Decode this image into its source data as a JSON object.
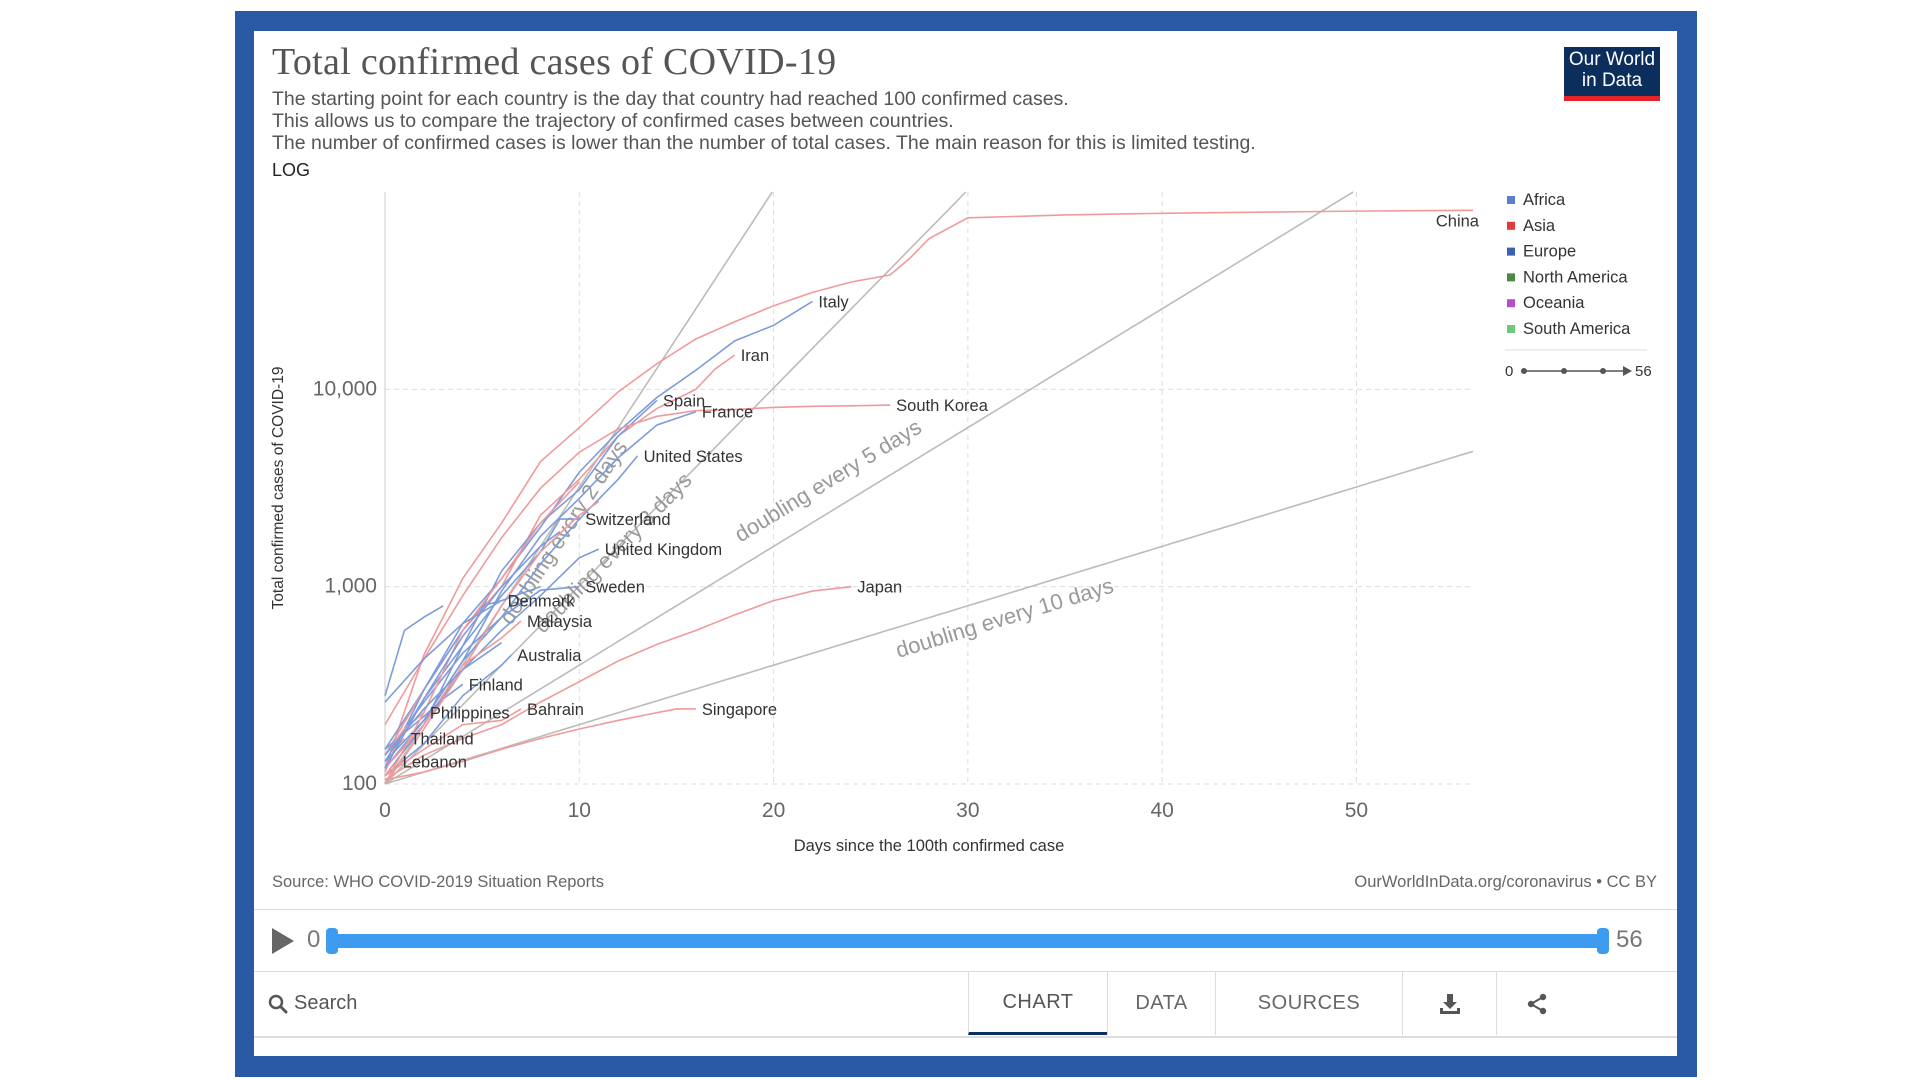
{
  "header": {
    "title": "Total confirmed cases of COVID-19",
    "subtitle_lines": [
      "The starting point for each country is the day that country had reached 100 confirmed cases.",
      "This allows us to compare the trajectory of confirmed cases between countries.",
      "The number of confirmed cases is lower than the number of total cases. The main reason for this is limited testing."
    ],
    "scale_label": "LOG",
    "logo_line1": "Our World",
    "logo_line2": "in Data"
  },
  "footer": {
    "source": "Source: WHO COVID-2019 Situation Reports",
    "url": "OurWorldInData.org/coronavirus • CC BY"
  },
  "timeline": {
    "start": "0",
    "end": "56"
  },
  "toolbar": {
    "search_label": "Search",
    "tabs": [
      "CHART",
      "DATA",
      "SOURCES"
    ],
    "active_tab": "CHART"
  },
  "chart_data": {
    "type": "line",
    "ylabel": "Total confirmed cases of COVID-19",
    "xlabel": "Days since the 100th confirmed case",
    "log_y": true,
    "xlim": [
      0,
      56
    ],
    "ylim": [
      100,
      80000
    ],
    "x_ticks": [
      0,
      10,
      20,
      30,
      40,
      50
    ],
    "y_ticks": [
      100,
      1000,
      10000
    ],
    "y_tick_labels": [
      "100",
      "1,000",
      "10,000"
    ],
    "grid": true,
    "legend_position": "right",
    "legend": [
      {
        "name": "Africa",
        "color": "#5d7fd0"
      },
      {
        "name": "Asia",
        "color": "#e03a3a"
      },
      {
        "name": "Europe",
        "color": "#3b62b0"
      },
      {
        "name": "North America",
        "color": "#4a8a44"
      },
      {
        "name": "Oceania",
        "color": "#b44fc2"
      },
      {
        "name": "South America",
        "color": "#6cc97a"
      }
    ],
    "legend_timeline": {
      "start": "0",
      "end": "56"
    },
    "doubling_lines": [
      {
        "label": "doubling every 2 days",
        "days": 2
      },
      {
        "label": "doubling every 3 days",
        "days": 3
      },
      {
        "label": "doubling every 5 days",
        "days": 5
      },
      {
        "label": "doubling every 10 days",
        "days": 10
      }
    ],
    "series": [
      {
        "name": "China",
        "color": "#f09a9a",
        "x": [
          0,
          2,
          4,
          6,
          8,
          10,
          12,
          14,
          16,
          18,
          20,
          22,
          24,
          26,
          27,
          28,
          30,
          35,
          40,
          45,
          50,
          56
        ],
        "y": [
          120,
          450,
          1100,
          2100,
          4300,
          6400,
          9700,
          13500,
          18000,
          22000,
          26500,
          31000,
          35000,
          38000,
          46000,
          58000,
          74000,
          76500,
          78000,
          79000,
          80000,
          80800
        ]
      },
      {
        "name": "Italy",
        "color": "#7d9cdb",
        "x": [
          0,
          2,
          4,
          6,
          8,
          10,
          12,
          14,
          16,
          18,
          20,
          22
        ],
        "y": [
          150,
          300,
          650,
          1100,
          2000,
          3800,
          6100,
          9100,
          12500,
          17600,
          21100,
          27900
        ]
      },
      {
        "name": "Iran",
        "color": "#f09a9a",
        "x": [
          0,
          2,
          4,
          6,
          8,
          10,
          12,
          14,
          16,
          17,
          18
        ],
        "y": [
          140,
          300,
          600,
          1000,
          2300,
          3500,
          5800,
          8000,
          10000,
          12700,
          14900
        ]
      },
      {
        "name": "Spain",
        "color": "#7d9cdb",
        "x": [
          0,
          2,
          4,
          6,
          8,
          10,
          12,
          14
        ],
        "y": [
          110,
          200,
          500,
          1200,
          2100,
          3100,
          5800,
          8800
        ]
      },
      {
        "name": "France",
        "color": "#7d9cdb",
        "x": [
          0,
          2,
          4,
          6,
          8,
          10,
          12,
          14,
          16
        ],
        "y": [
          130,
          210,
          420,
          950,
          1800,
          2800,
          4500,
          6600,
          7700
        ]
      },
      {
        "name": "South Korea",
        "color": "#f09a9a",
        "x": [
          0,
          2,
          4,
          6,
          8,
          10,
          12,
          14,
          16,
          18,
          20,
          22,
          24,
          26
        ],
        "y": [
          200,
          430,
          900,
          1770,
          3150,
          4800,
          6300,
          7300,
          7800,
          7900,
          8100,
          8200,
          8250,
          8320
        ]
      },
      {
        "name": "United States",
        "color": "#7d9cdb",
        "x": [
          0,
          2,
          4,
          6,
          8,
          10,
          12,
          13
        ],
        "y": [
          120,
          210,
          420,
          700,
          1300,
          2200,
          3500,
          4600
        ]
      },
      {
        "name": "Switzerland",
        "color": "#7d9cdb",
        "x": [
          0,
          2,
          4,
          6,
          8,
          9,
          10
        ],
        "y": [
          130,
          270,
          500,
          900,
          1500,
          2200,
          2200
        ]
      },
      {
        "name": "United Kingdom",
        "color": "#7d9cdb",
        "x": [
          0,
          2,
          4,
          6,
          8,
          10,
          11
        ],
        "y": [
          110,
          200,
          380,
          600,
          900,
          1400,
          1550
        ]
      },
      {
        "name": "Denmark",
        "color": "#7d9cdb",
        "x": [
          0,
          2,
          4,
          5,
          6
        ],
        "y": [
          120,
          300,
          600,
          800,
          850
        ]
      },
      {
        "name": "Sweden",
        "color": "#7d9cdb",
        "x": [
          0,
          2,
          4,
          6,
          8,
          10
        ],
        "y": [
          140,
          260,
          460,
          700,
          960,
          1000
        ]
      },
      {
        "name": "Malaysia",
        "color": "#f09a9a",
        "x": [
          0,
          2,
          4,
          6,
          7
        ],
        "y": [
          120,
          200,
          400,
          550,
          670
        ]
      },
      {
        "name": "Australia",
        "color": "#7d9cdb",
        "x": [
          0,
          2,
          4,
          6,
          6.5
        ],
        "y": [
          110,
          160,
          280,
          400,
          450
        ]
      },
      {
        "name": "Finland",
        "color": "#7d9cdb",
        "x": [
          0,
          2,
          3,
          4
        ],
        "y": [
          150,
          220,
          270,
          320
        ]
      },
      {
        "name": "Bahrain",
        "color": "#f09a9a",
        "x": [
          0,
          2,
          4,
          6,
          7
        ],
        "y": [
          110,
          150,
          200,
          210,
          240
        ]
      },
      {
        "name": "Philippines",
        "color": "#f09a9a",
        "x": [
          0,
          1,
          2
        ],
        "y": [
          140,
          190,
          230
        ]
      },
      {
        "name": "Thailand",
        "color": "#f09a9a",
        "x": [
          0,
          0.5,
          1
        ],
        "y": [
          115,
          150,
          170
        ]
      },
      {
        "name": "Lebanon",
        "color": "#f09a9a",
        "x": [
          0,
          0.3,
          0.6
        ],
        "y": [
          110,
          120,
          130
        ]
      },
      {
        "name": "Japan",
        "color": "#f09a9a",
        "x": [
          0,
          2,
          4,
          6,
          8,
          10,
          12,
          14,
          16,
          18,
          20,
          22,
          24
        ],
        "y": [
          105,
          140,
          170,
          200,
          260,
          330,
          420,
          510,
          600,
          720,
          850,
          950,
          1000
        ]
      },
      {
        "name": "Singapore",
        "color": "#f09a9a",
        "x": [
          0,
          2,
          4,
          6,
          8,
          10,
          12,
          14,
          15,
          16
        ],
        "y": [
          105,
          115,
          130,
          150,
          170,
          190,
          210,
          230,
          240,
          240
        ]
      },
      {
        "name": "",
        "color": "#f09a9a",
        "x": [
          0,
          2,
          4,
          6,
          8,
          10
        ],
        "y": [
          100,
          230,
          600,
          1100,
          2100,
          3400
        ]
      },
      {
        "name": "",
        "color": "#f09a9a",
        "x": [
          0,
          2,
          4,
          6,
          8,
          10,
          11
        ],
        "y": [
          100,
          190,
          380,
          800,
          1500,
          2300,
          2700
        ]
      },
      {
        "name": "",
        "color": "#7d9cdb",
        "x": [
          0,
          2,
          4,
          6,
          8
        ],
        "y": [
          260,
          430,
          650,
          850,
          1000
        ]
      },
      {
        "name": "",
        "color": "#7d9cdb",
        "x": [
          0,
          2,
          4,
          6,
          8,
          9
        ],
        "y": [
          120,
          270,
          560,
          1000,
          1600,
          1900
        ]
      },
      {
        "name": "",
        "color": "#7d9cdb",
        "x": [
          0,
          1,
          2,
          3
        ],
        "y": [
          280,
          600,
          700,
          800
        ]
      },
      {
        "name": "",
        "color": "#7d9cdb",
        "x": [
          0,
          2,
          4,
          6
        ],
        "y": [
          140,
          240,
          380,
          520
        ]
      }
    ],
    "labels": [
      {
        "text": "China",
        "x": 56,
        "y": 80800
      },
      {
        "text": "Italy",
        "x": 22,
        "y": 27900
      },
      {
        "text": "Iran",
        "x": 18,
        "y": 14900
      },
      {
        "text": "Spain",
        "x": 14,
        "y": 8800
      },
      {
        "text": "South Korea",
        "x": 26,
        "y": 8320
      },
      {
        "text": "France",
        "x": 16,
        "y": 7700
      },
      {
        "text": "United States",
        "x": 13,
        "y": 4600
      },
      {
        "text": "Switzerland",
        "x": 10,
        "y": 2200
      },
      {
        "text": "United Kingdom",
        "x": 11,
        "y": 1550
      },
      {
        "text": "Sweden",
        "x": 10,
        "y": 1000
      },
      {
        "text": "Denmark",
        "x": 6,
        "y": 850
      },
      {
        "text": "Japan",
        "x": 24,
        "y": 1000
      },
      {
        "text": "Malaysia",
        "x": 7,
        "y": 670
      },
      {
        "text": "Australia",
        "x": 6.5,
        "y": 450
      },
      {
        "text": "Finland",
        "x": 4,
        "y": 320
      },
      {
        "text": "Bahrain",
        "x": 7,
        "y": 240
      },
      {
        "text": "Singapore",
        "x": 16,
        "y": 240
      },
      {
        "text": "Philippines",
        "x": 2,
        "y": 230
      },
      {
        "text": "Thailand",
        "x": 1,
        "y": 170
      },
      {
        "text": "Lebanon",
        "x": 0.6,
        "y": 130
      }
    ]
  }
}
